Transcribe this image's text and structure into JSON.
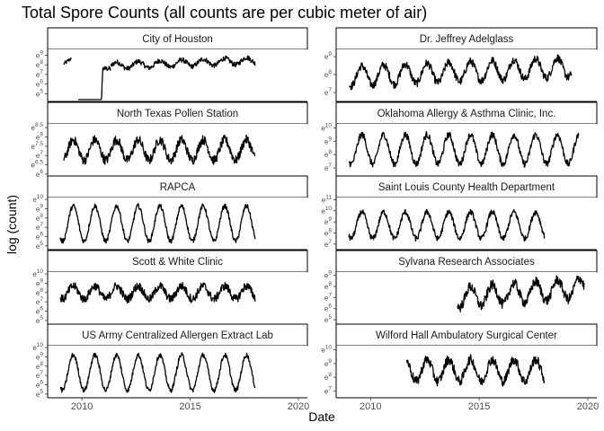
{
  "chart_data": {
    "type": "line",
    "title": "Total Spore Counts (all counts are per cubic meter of air)",
    "xlabel": "Date",
    "ylabel": "log (count)",
    "x_ticks": [
      "2010",
      "2015",
      "2020"
    ],
    "xlim": [
      "2008-06-01",
      "2020-06-01"
    ],
    "grid": false,
    "layout": {
      "rows": 5,
      "cols": 2
    },
    "panels": [
      {
        "name": "City of Houston",
        "y_ticks": [
          5,
          6,
          7,
          8,
          9
        ],
        "ylim": [
          4.2,
          9.6
        ],
        "segments": [
          {
            "x_start": "2009-03-01",
            "x_end": "2009-07-01",
            "pattern": "season",
            "base": 8.4,
            "amp": 0.3,
            "noise": 0.2
          },
          {
            "x_start": "2009-11-01",
            "x_end": "2010-11-01",
            "pattern": "flat",
            "base": 4.4,
            "amp": 0,
            "noise": 0
          },
          {
            "x_start": "2010-11-01",
            "x_end": "2011-05-01",
            "pattern": "rise",
            "base": 4.4,
            "target": 7.6,
            "noise": 0.25
          },
          {
            "x_start": "2011-05-01",
            "x_end": "2018-01-01",
            "pattern": "season",
            "base": 7.9,
            "amp": 0.35,
            "noise": 0.25,
            "trend": 0.08
          }
        ]
      },
      {
        "name": "Dr. Jeffrey Adelglass",
        "y_ticks": [
          7,
          8,
          9
        ],
        "ylim": [
          6.5,
          9.4
        ],
        "segments": [
          {
            "x_start": "2009-01-01",
            "x_end": "2019-04-01",
            "pattern": "season",
            "base": 7.9,
            "amp": 0.55,
            "noise": 0.22,
            "trend": 0.05
          }
        ]
      },
      {
        "name": "North Texas Pollen Station",
        "y_ticks": [
          6,
          6.5,
          7,
          7.5,
          8,
          8.5
        ],
        "ylim": [
          5.9,
          8.7
        ],
        "segments": [
          {
            "x_start": "2009-03-01",
            "x_end": "2018-01-01",
            "pattern": "season",
            "base": 7.3,
            "amp": 0.55,
            "noise": 0.25
          }
        ]
      },
      {
        "name": "Oklahoma Allergy & Asthma Clinic, Inc.",
        "y_ticks": [
          7,
          8,
          9,
          10
        ],
        "ylim": [
          6.4,
          10.3
        ],
        "segments": [
          {
            "x_start": "2009-01-01",
            "x_end": "2019-08-01",
            "pattern": "season",
            "base": 8.4,
            "amp": 1.1,
            "noise": 0.25
          }
        ]
      },
      {
        "name": "RAPCA",
        "y_ticks": [
          5,
          6,
          7,
          8,
          9,
          10
        ],
        "ylim": [
          4.6,
          10.2
        ],
        "segments": [
          {
            "x_start": "2009-01-01",
            "x_end": "2018-01-01",
            "pattern": "season",
            "base": 7.4,
            "amp": 1.9,
            "noise": 0.25
          }
        ]
      },
      {
        "name": "Saint Louis County Health Department",
        "y_ticks": [
          7,
          8,
          9,
          10,
          11
        ],
        "ylim": [
          6.5,
          11.2
        ],
        "segments": [
          {
            "x_start": "2009-01-01",
            "x_end": "2018-01-01",
            "pattern": "season",
            "base": 8.7,
            "amp": 1.2,
            "noise": 0.25
          }
        ]
      },
      {
        "name": "Scott & White Clinic",
        "y_ticks": [
          5,
          6,
          7,
          8,
          9,
          10
        ],
        "ylim": [
          4.6,
          10.2
        ],
        "segments": [
          {
            "x_start": "2009-01-01",
            "x_end": "2018-01-01",
            "pattern": "season",
            "base": 8.0,
            "amp": 0.7,
            "noise": 0.45
          }
        ]
      },
      {
        "name": "Sylvana Research Associates",
        "y_ticks": [
          5,
          6,
          7,
          8,
          9
        ],
        "ylim": [
          4.6,
          9.3
        ],
        "segments": [
          {
            "x_start": "2014-01-01",
            "x_end": "2019-11-01",
            "pattern": "season",
            "base": 7.0,
            "amp": 0.9,
            "noise": 0.45,
            "trend": 0.15
          }
        ]
      },
      {
        "name": "US Army Centralized Allergen Extract Lab",
        "y_ticks": [
          5,
          6,
          7,
          8,
          9,
          10
        ],
        "ylim": [
          4.6,
          10.2
        ],
        "segments": [
          {
            "x_start": "2009-01-01",
            "x_end": "2018-01-01",
            "pattern": "season",
            "base": 7.3,
            "amp": 1.9,
            "noise": 0.25
          }
        ]
      },
      {
        "name": "Wilford Hall Ambulatory Surgical Center",
        "y_ticks": [
          7,
          8,
          9,
          10
        ],
        "ylim": [
          6.5,
          10.3
        ],
        "segments": [
          {
            "x_start": "2011-09-01",
            "x_end": "2018-01-01",
            "pattern": "season",
            "base": 8.5,
            "amp": 0.8,
            "noise": 0.35
          }
        ]
      }
    ]
  }
}
